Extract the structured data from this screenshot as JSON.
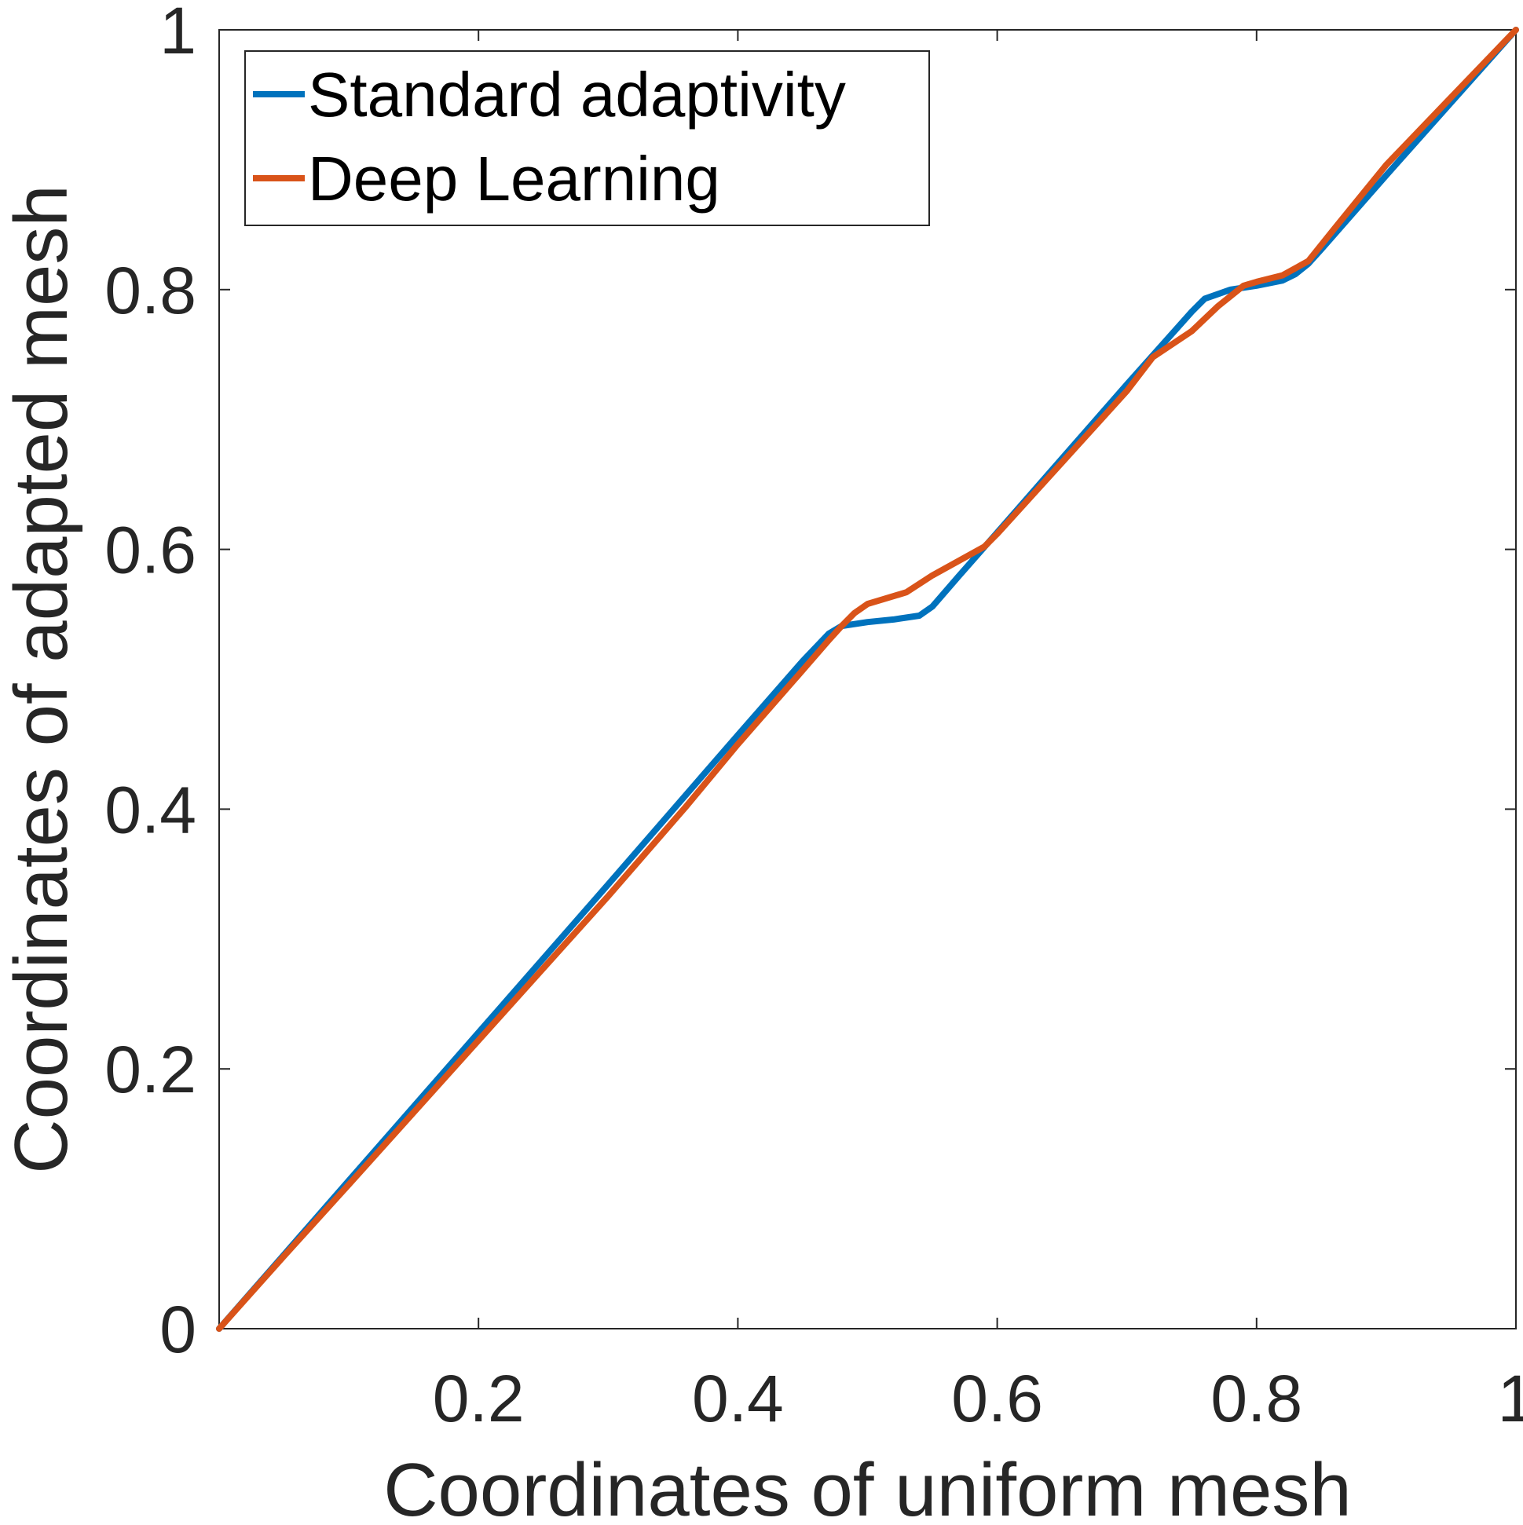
{
  "chart_data": {
    "type": "line",
    "title": "",
    "xlabel": "Coordinates of uniform mesh",
    "ylabel": "Coordinates of adapted mesh",
    "xlim": [
      0,
      1
    ],
    "ylim": [
      0,
      1
    ],
    "x_ticks": [
      {
        "value": 0.2,
        "label": "0.2"
      },
      {
        "value": 0.4,
        "label": "0.4"
      },
      {
        "value": 0.6,
        "label": "0.6"
      },
      {
        "value": 0.8,
        "label": "0.8"
      },
      {
        "value": 1,
        "label": "1"
      }
    ],
    "y_ticks": [
      {
        "value": 0,
        "label": "0"
      },
      {
        "value": 0.2,
        "label": "0.2"
      },
      {
        "value": 0.4,
        "label": "0.4"
      },
      {
        "value": 0.6,
        "label": "0.6"
      },
      {
        "value": 0.8,
        "label": "0.8"
      },
      {
        "value": 1,
        "label": "1"
      }
    ],
    "grid": false,
    "legend_position": "top-left",
    "series": [
      {
        "name": "Standard adaptivity",
        "color": "#0072BD",
        "x": [
          0,
          0.05,
          0.1,
          0.2,
          0.3,
          0.4,
          0.45,
          0.47,
          0.48,
          0.5,
          0.52,
          0.54,
          0.55,
          0.57,
          0.6,
          0.65,
          0.7,
          0.75,
          0.76,
          0.78,
          0.8,
          0.82,
          0.83,
          0.84,
          0.85,
          0.9,
          0.95,
          1.0
        ],
        "values": [
          0,
          0.057,
          0.114,
          0.228,
          0.342,
          0.457,
          0.514,
          0.535,
          0.541,
          0.544,
          0.546,
          0.549,
          0.556,
          0.579,
          0.613,
          0.67,
          0.727,
          0.783,
          0.793,
          0.8,
          0.803,
          0.807,
          0.812,
          0.82,
          0.831,
          0.888,
          0.944,
          1.0
        ]
      },
      {
        "name": "Deep Learning",
        "color": "#D95319",
        "x": [
          0,
          0.05,
          0.1,
          0.2,
          0.3,
          0.36,
          0.4,
          0.45,
          0.47,
          0.48,
          0.49,
          0.5,
          0.53,
          0.55,
          0.57,
          0.59,
          0.6,
          0.65,
          0.7,
          0.72,
          0.75,
          0.77,
          0.79,
          0.8,
          0.82,
          0.84,
          0.86,
          0.9,
          0.95,
          1.0
        ],
        "values": [
          0,
          0.056,
          0.111,
          0.222,
          0.333,
          0.402,
          0.45,
          0.507,
          0.53,
          0.541,
          0.551,
          0.558,
          0.567,
          0.58,
          0.591,
          0.602,
          0.612,
          0.667,
          0.722,
          0.748,
          0.768,
          0.787,
          0.803,
          0.806,
          0.811,
          0.822,
          0.847,
          0.896,
          0.948,
          1.0
        ]
      }
    ]
  }
}
